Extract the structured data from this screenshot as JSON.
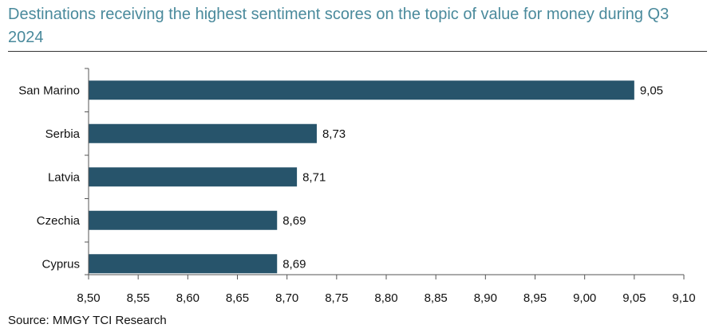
{
  "chart_data": {
    "type": "bar",
    "orientation": "horizontal",
    "title": "Destinations receiving the highest sentiment scores on the topic of value for money during Q3 2024",
    "categories": [
      "San Marino",
      "Serbia",
      "Latvia",
      "Czechia",
      "Cyprus"
    ],
    "values": [
      9.05,
      8.73,
      8.71,
      8.69,
      8.69
    ],
    "value_labels": [
      "9,05",
      "8,73",
      "8,71",
      "8,69",
      "8,69"
    ],
    "xlim": [
      8.5,
      9.1
    ],
    "x_ticks": [
      "8,50",
      "8,55",
      "8,60",
      "8,65",
      "8,70",
      "8,75",
      "8,80",
      "8,85",
      "8,90",
      "8,95",
      "9,00",
      "9,05",
      "9,10"
    ],
    "grid": false,
    "bar_color": "#27546b",
    "source": "Source: MMGY TCI Research"
  }
}
